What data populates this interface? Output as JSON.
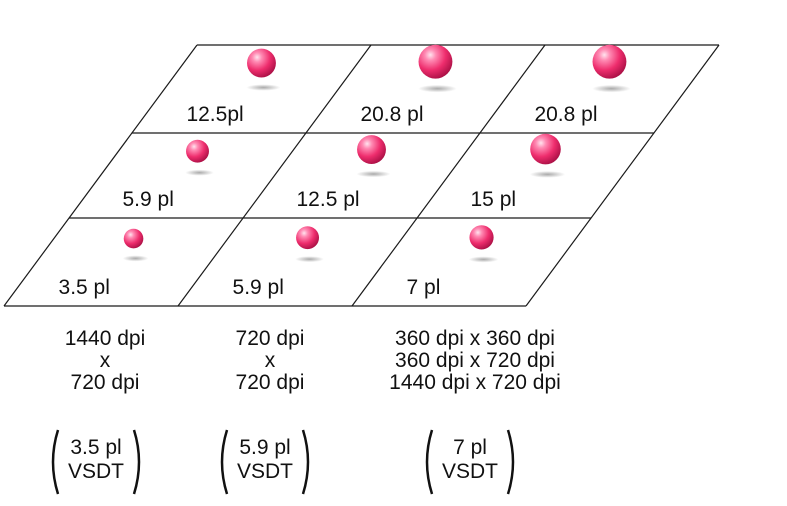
{
  "colors": {
    "droplet": "#ee2d6d",
    "droplet_highlight": "#ffd6e4",
    "droplet_dark": "#b8124c",
    "grid_line": "#1a1a1a",
    "text": "#111111"
  },
  "grid": {
    "cells": [
      {
        "row": 0,
        "col": 0,
        "label": "12.5pl",
        "size_pl": 12.5
      },
      {
        "row": 0,
        "col": 1,
        "label": "20.8 pl",
        "size_pl": 20.8
      },
      {
        "row": 0,
        "col": 2,
        "label": "20.8 pl",
        "size_pl": 20.8
      },
      {
        "row": 1,
        "col": 0,
        "label": "5.9 pl",
        "size_pl": 5.9
      },
      {
        "row": 1,
        "col": 1,
        "label": "12.5 pl",
        "size_pl": 12.5
      },
      {
        "row": 1,
        "col": 2,
        "label": "15 pl",
        "size_pl": 15
      },
      {
        "row": 2,
        "col": 0,
        "label": "3.5 pl",
        "size_pl": 3.5
      },
      {
        "row": 2,
        "col": 1,
        "label": "5.9 pl",
        "size_pl": 5.9
      },
      {
        "row": 2,
        "col": 2,
        "label": "7 pl",
        "size_pl": 7
      }
    ]
  },
  "columns": [
    {
      "resolution_lines": [
        "1440 dpi",
        "x",
        "720 dpi"
      ],
      "vsdt_lines": [
        "3.5 pl",
        "VSDT"
      ]
    },
    {
      "resolution_lines": [
        "720 dpi",
        "x",
        "720 dpi"
      ],
      "vsdt_lines": [
        "5.9 pl",
        "VSDT"
      ]
    },
    {
      "resolution_lines": [
        "360 dpi x 360 dpi",
        "360 dpi x 720 dpi",
        "1440 dpi x 720 dpi"
      ],
      "vsdt_lines": [
        "7 pl",
        "VSDT"
      ]
    }
  ]
}
